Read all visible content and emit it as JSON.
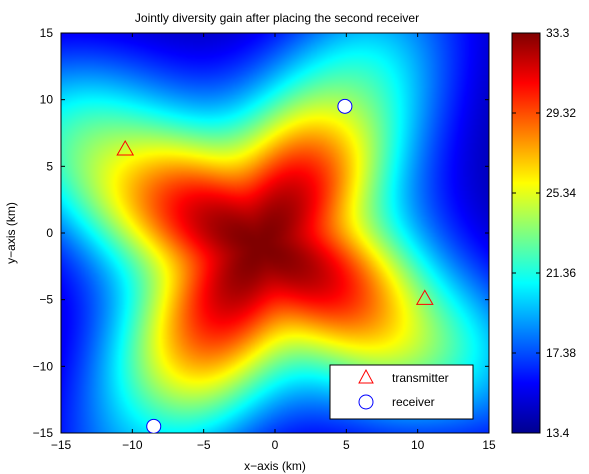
{
  "chart_data": {
    "type": "heatmap",
    "title": "Jointly diversity gain after placing the second receiver",
    "xlabel": "x−axis (km)",
    "ylabel": "y−axis (km)",
    "xlim": [
      -15,
      15
    ],
    "ylim": [
      -15,
      15
    ],
    "x_ticks": [
      -15,
      -10,
      -5,
      0,
      5,
      10,
      15
    ],
    "y_ticks": [
      -15,
      -10,
      -5,
      0,
      5,
      10,
      15
    ],
    "x_tick_labels": [
      "−15",
      "−10",
      "−5",
      "0",
      "5",
      "10",
      "15"
    ],
    "y_tick_labels": [
      "−15",
      "−10",
      "−5",
      "0",
      "5",
      "10",
      "15"
    ],
    "colorbar": {
      "min": 13.4,
      "max": 33.3,
      "ticks": [
        13.4,
        17.38,
        21.36,
        25.34,
        29.32,
        33.3
      ],
      "tick_labels": [
        "13.4",
        "17.38",
        "21.36",
        "25.34",
        "29.32",
        "33.3"
      ],
      "colormap": "jet"
    },
    "field": {
      "peak_location": [
        -1,
        -1
      ],
      "peak_value": 33.3,
      "shape": "rounded square rotated ~15 degrees with concave sides"
    },
    "transmitters": [
      {
        "x": -10.5,
        "y": 6.3
      },
      {
        "x": 10.5,
        "y": -4.9
      }
    ],
    "receivers": [
      {
        "x": 4.9,
        "y": 9.5
      },
      {
        "x": -8.5,
        "y": -14.5
      }
    ],
    "legend": {
      "position": "bottom-right",
      "entries": [
        {
          "label": "transmitter",
          "marker": "triangle",
          "color": "#ff0000"
        },
        {
          "label": "receiver",
          "marker": "circle",
          "color": "#0000ff"
        }
      ]
    },
    "grid": false
  }
}
